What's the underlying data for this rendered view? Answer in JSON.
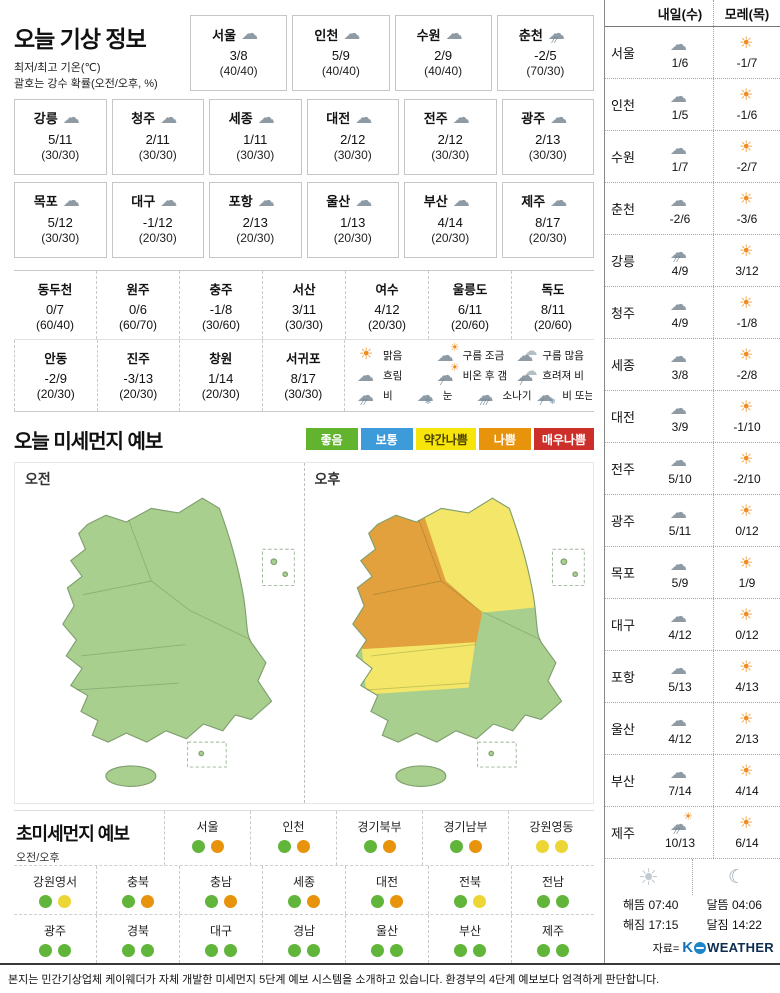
{
  "title_block": {
    "title": "오늘 기상 정보",
    "note1": "최저/최고 기온(℃)",
    "note2": "괄호는 강수 확률(오전/오후, %)"
  },
  "today": {
    "row1": [
      {
        "city": "서울",
        "icon": "cloud",
        "temp": "3/8",
        "prob": "(40/40)"
      },
      {
        "city": "인천",
        "icon": "cloud",
        "temp": "5/9",
        "prob": "(40/40)"
      },
      {
        "city": "수원",
        "icon": "cloud",
        "temp": "2/9",
        "prob": "(40/40)"
      },
      {
        "city": "춘천",
        "icon": "rain",
        "temp": "-2/5",
        "prob": "(70/30)"
      }
    ],
    "row2": [
      {
        "city": "강릉",
        "icon": "cloud",
        "temp": "5/11",
        "prob": "(30/30)"
      },
      {
        "city": "청주",
        "icon": "cloud",
        "temp": "2/11",
        "prob": "(30/30)"
      },
      {
        "city": "세종",
        "icon": "cloud",
        "temp": "1/11",
        "prob": "(30/30)"
      },
      {
        "city": "대전",
        "icon": "cloud",
        "temp": "2/12",
        "prob": "(30/30)"
      },
      {
        "city": "전주",
        "icon": "cloud",
        "temp": "2/12",
        "prob": "(30/30)"
      },
      {
        "city": "광주",
        "icon": "cloud",
        "temp": "2/13",
        "prob": "(30/30)"
      }
    ],
    "row3": [
      {
        "city": "목포",
        "icon": "cloud",
        "temp": "5/12",
        "prob": "(30/30)"
      },
      {
        "city": "대구",
        "icon": "cloud",
        "temp": "-1/12",
        "prob": "(20/30)"
      },
      {
        "city": "포항",
        "icon": "cloud",
        "temp": "2/13",
        "prob": "(20/30)"
      },
      {
        "city": "울산",
        "icon": "cloud",
        "temp": "1/13",
        "prob": "(20/30)"
      },
      {
        "city": "부산",
        "icon": "cloud",
        "temp": "4/14",
        "prob": "(20/30)"
      },
      {
        "city": "제주",
        "icon": "cloud",
        "temp": "8/17",
        "prob": "(20/30)"
      }
    ]
  },
  "extra_table": {
    "row1": [
      {
        "city": "동두천",
        "temp": "0/7",
        "prob": "(60/40)"
      },
      {
        "city": "원주",
        "temp": "0/6",
        "prob": "(60/70)"
      },
      {
        "city": "충주",
        "temp": "-1/8",
        "prob": "(30/60)"
      },
      {
        "city": "서산",
        "temp": "3/11",
        "prob": "(30/30)"
      },
      {
        "city": "여수",
        "temp": "4/12",
        "prob": "(20/30)"
      },
      {
        "city": "울릉도",
        "temp": "6/11",
        "prob": "(20/60)"
      },
      {
        "city": "독도",
        "temp": "8/11",
        "prob": "(20/60)"
      }
    ],
    "row2": [
      {
        "city": "안동",
        "temp": "-2/9",
        "prob": "(20/30)"
      },
      {
        "city": "진주",
        "temp": "-3/13",
        "prob": "(20/30)"
      },
      {
        "city": "창원",
        "temp": "1/14",
        "prob": "(20/30)"
      },
      {
        "city": "서귀포",
        "temp": "8/17",
        "prob": "(30/30)"
      }
    ]
  },
  "icon_legend": [
    [
      {
        "icon": "sun",
        "label": "맑음"
      },
      {
        "icon": "sun-cloud",
        "label": "구름 조금"
      },
      {
        "icon": "clouds",
        "label": "구름 많음"
      }
    ],
    [
      {
        "icon": "cloud",
        "label": "흐림"
      },
      {
        "icon": "rain-then-sun",
        "label": "비온 후 갬"
      },
      {
        "icon": "cloud-rain",
        "label": "흐려져 비"
      }
    ],
    [
      {
        "icon": "rain",
        "label": "비"
      },
      {
        "icon": "snow",
        "label": "눈"
      },
      {
        "icon": "shower",
        "label": "소나기"
      },
      {
        "icon": "rain-or-snow",
        "label": "비 또는 눈"
      }
    ]
  ],
  "dust": {
    "title": "오늘 미세먼지 예보",
    "am_label": "오전",
    "pm_label": "오후",
    "levels": [
      {
        "label": "좋음",
        "color": "#62b32e"
      },
      {
        "label": "보통",
        "color": "#3d9bd9"
      },
      {
        "label": "약간나쁨",
        "color": "#f6e40a",
        "text": "#4a4000"
      },
      {
        "label": "나쁨",
        "color": "#e8930c"
      },
      {
        "label": "매우나쁨",
        "color": "#cc2f2a"
      }
    ],
    "map_colors": {
      "green": "#a8cf8e",
      "yellow": "#f3e668",
      "orange": "#e2a13c"
    }
  },
  "ultrafine": {
    "title": "초미세먼지 예보",
    "sub": "오전/오후",
    "dot_colors": {
      "green": "#61b53a",
      "yellow": "#ecd636",
      "orange": "#e8930c"
    },
    "row1": [
      {
        "name": "서울",
        "am": "green",
        "pm": "orange"
      },
      {
        "name": "인천",
        "am": "green",
        "pm": "orange"
      },
      {
        "name": "경기북부",
        "am": "green",
        "pm": "orange"
      },
      {
        "name": "경기남부",
        "am": "green",
        "pm": "orange"
      },
      {
        "name": "강원영동",
        "am": "yellow",
        "pm": "yellow"
      }
    ],
    "row2": [
      {
        "name": "강원영서",
        "am": "green",
        "pm": "yellow"
      },
      {
        "name": "충북",
        "am": "green",
        "pm": "orange"
      },
      {
        "name": "충남",
        "am": "green",
        "pm": "orange"
      },
      {
        "name": "세종",
        "am": "green",
        "pm": "orange"
      },
      {
        "name": "대전",
        "am": "green",
        "pm": "orange"
      },
      {
        "name": "전북",
        "am": "green",
        "pm": "yellow"
      },
      {
        "name": "전남",
        "am": "green",
        "pm": "green"
      }
    ],
    "row3": [
      {
        "name": "광주",
        "am": "green",
        "pm": "green"
      },
      {
        "name": "경북",
        "am": "green",
        "pm": "green"
      },
      {
        "name": "대구",
        "am": "green",
        "pm": "green"
      },
      {
        "name": "경남",
        "am": "green",
        "pm": "green"
      },
      {
        "name": "울산",
        "am": "green",
        "pm": "green"
      },
      {
        "name": "부산",
        "am": "green",
        "pm": "green"
      },
      {
        "name": "제주",
        "am": "green",
        "pm": "green"
      }
    ]
  },
  "sidebar": {
    "col1": "내일(수)",
    "col2": "모레(목)",
    "rows": [
      {
        "city": "서울",
        "d1": {
          "icon": "cloud",
          "temp": "1/6"
        },
        "d2": {
          "icon": "sun",
          "temp": "-1/7"
        }
      },
      {
        "city": "인천",
        "d1": {
          "icon": "cloud",
          "temp": "1/5"
        },
        "d2": {
          "icon": "sun",
          "temp": "-1/6"
        }
      },
      {
        "city": "수원",
        "d1": {
          "icon": "cloud",
          "temp": "1/7"
        },
        "d2": {
          "icon": "sun",
          "temp": "-2/7"
        }
      },
      {
        "city": "춘천",
        "d1": {
          "icon": "cloud",
          "temp": "-2/6"
        },
        "d2": {
          "icon": "sun",
          "temp": "-3/6"
        }
      },
      {
        "city": "강릉",
        "d1": {
          "icon": "rain",
          "temp": "4/9"
        },
        "d2": {
          "icon": "sun",
          "temp": "3/12"
        }
      },
      {
        "city": "청주",
        "d1": {
          "icon": "cloud",
          "temp": "4/9"
        },
        "d2": {
          "icon": "sun",
          "temp": "-1/8"
        }
      },
      {
        "city": "세종",
        "d1": {
          "icon": "cloud",
          "temp": "3/8"
        },
        "d2": {
          "icon": "sun",
          "temp": "-2/8"
        }
      },
      {
        "city": "대전",
        "d1": {
          "icon": "cloud",
          "temp": "3/9"
        },
        "d2": {
          "icon": "sun",
          "temp": "-1/10"
        }
      },
      {
        "city": "전주",
        "d1": {
          "icon": "cloud",
          "temp": "5/10"
        },
        "d2": {
          "icon": "sun",
          "temp": "-2/10"
        }
      },
      {
        "city": "광주",
        "d1": {
          "icon": "cloud",
          "temp": "5/11"
        },
        "d2": {
          "icon": "sun",
          "temp": "0/12"
        }
      },
      {
        "city": "목포",
        "d1": {
          "icon": "cloud",
          "temp": "5/9"
        },
        "d2": {
          "icon": "sun",
          "temp": "1/9"
        }
      },
      {
        "city": "대구",
        "d1": {
          "icon": "cloud",
          "temp": "4/12"
        },
        "d2": {
          "icon": "sun",
          "temp": "0/12"
        }
      },
      {
        "city": "포항",
        "d1": {
          "icon": "cloud",
          "temp": "5/13"
        },
        "d2": {
          "icon": "sun",
          "temp": "4/13"
        }
      },
      {
        "city": "울산",
        "d1": {
          "icon": "cloud",
          "temp": "4/12"
        },
        "d2": {
          "icon": "sun",
          "temp": "2/13"
        }
      },
      {
        "city": "부산",
        "d1": {
          "icon": "cloud",
          "temp": "7/14"
        },
        "d2": {
          "icon": "sun",
          "temp": "4/14"
        }
      },
      {
        "city": "제주",
        "d1": {
          "icon": "rain-sun",
          "temp": "10/13"
        },
        "d2": {
          "icon": "sun",
          "temp": "6/14"
        }
      }
    ],
    "sun": {
      "rise_label": "해뜸",
      "rise": "07:40",
      "set_label": "해짐",
      "set": "17:15"
    },
    "moon": {
      "rise_label": "달뜸",
      "rise": "04:06",
      "set_label": "달짐",
      "set": "14:22"
    },
    "source_label": "자료=",
    "logo": {
      "k": "K",
      "rest": "WEATHER"
    }
  },
  "footer": "본지는 민간기상업체 케이웨더가 자체 개발한 미세먼지 5단계 예보 시스템을 소개하고 있습니다. 환경부의 4단계 예보보다 엄격하게 판단합니다."
}
